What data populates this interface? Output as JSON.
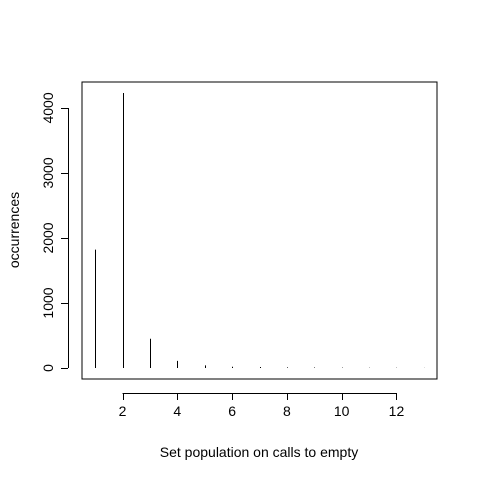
{
  "chart_data": {
    "type": "bar",
    "title": "",
    "xlabel": "Set population on calls to empty",
    "ylabel": "occurrences",
    "x": [
      1,
      2,
      3,
      4,
      5,
      6,
      7,
      8,
      9,
      10,
      11,
      12,
      13
    ],
    "values": [
      1820,
      4230,
      450,
      110,
      40,
      20,
      15,
      10,
      8,
      6,
      4,
      3,
      2
    ],
    "xlim": [
      0.52,
      13.48
    ],
    "ylim": [
      -169.2,
      4399.2
    ],
    "xticks": [
      2,
      4,
      6,
      8,
      10,
      12
    ],
    "yticks": [
      0,
      1000,
      2000,
      3000,
      4000
    ],
    "grid": false,
    "legend": "none",
    "colors": {
      "bars": "#000000",
      "axes": "#000000",
      "background": "#ffffff"
    }
  }
}
